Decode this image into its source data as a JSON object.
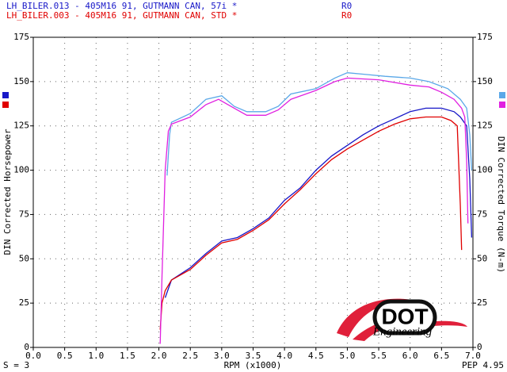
{
  "chart_data": {
    "type": "line",
    "run_labels": [
      "R0",
      "R0"
    ],
    "y_label": "DIN Corrected Horsepower",
    "y2_label": "DIN Corrected Torque (N-m)",
    "x_label": "RPM (x1000)",
    "footer_left": "S = 3",
    "footer_right": "PEP 4.95",
    "xlim": [
      0,
      7
    ],
    "ylim": [
      0,
      175
    ],
    "y2lim": [
      0,
      175
    ],
    "xticks": [
      {
        "value": 0,
        "label": "0.0"
      },
      {
        "value": 0.5,
        "label": "0.5"
      },
      {
        "value": 1,
        "label": "1.0"
      },
      {
        "value": 1.5,
        "label": "1.5"
      },
      {
        "value": 2,
        "label": "2.0"
      },
      {
        "value": 2.5,
        "label": "2.5"
      },
      {
        "value": 3,
        "label": "3.0"
      },
      {
        "value": 3.5,
        "label": "3.5"
      },
      {
        "value": 4,
        "label": "4.0"
      },
      {
        "value": 4.5,
        "label": "4.5"
      },
      {
        "value": 5,
        "label": "5.0"
      },
      {
        "value": 5.5,
        "label": "5.5"
      },
      {
        "value": 6,
        "label": "6.0"
      },
      {
        "value": 6.5,
        "label": "6.5"
      },
      {
        "value": 7,
        "label": "7.0"
      }
    ],
    "yticks": [
      0,
      25,
      50,
      75,
      100,
      125,
      150,
      175
    ],
    "y2ticks": [
      0,
      25,
      50,
      75,
      100,
      125,
      150,
      175
    ],
    "grid": true,
    "series": [
      {
        "name": "LH_BILER.013 - 405M16 91, GUTMANN CAN, 57i *",
        "color": "#1818c8",
        "x": [
          2.1,
          2.2,
          2.5,
          2.75,
          3.0,
          3.25,
          3.5,
          3.75,
          4.0,
          4.25,
          4.5,
          4.75,
          5.0,
          5.25,
          5.5,
          5.75,
          6.0,
          6.25,
          6.5,
          6.7,
          6.8,
          6.9,
          6.95,
          6.98
        ],
        "values": [
          28,
          38,
          45,
          53,
          60,
          62,
          67,
          73,
          83,
          90,
          100,
          108,
          114,
          120,
          125,
          129,
          133,
          135,
          135,
          133,
          130,
          125,
          95,
          62
        ]
      },
      {
        "name": "LH_BILER.003 - 405M16 91, GUTMANN CAN, STD *",
        "color": "#e00000",
        "x": [
          2.02,
          2.05,
          2.1,
          2.2,
          2.5,
          2.75,
          3.0,
          3.25,
          3.5,
          3.75,
          4.0,
          4.25,
          4.5,
          4.75,
          5.0,
          5.25,
          5.5,
          5.75,
          6.0,
          6.25,
          6.5,
          6.65,
          6.75,
          6.8,
          6.82
        ],
        "values": [
          10,
          25,
          32,
          38,
          44,
          52,
          59,
          61,
          66,
          72,
          81,
          89,
          98,
          106,
          112,
          117,
          122,
          126,
          129,
          130,
          130,
          128,
          125,
          80,
          55
        ]
      },
      {
        "color": "#5aa8e8",
        "axis": "y2",
        "x": [
          2.13,
          2.17,
          2.2,
          2.5,
          2.75,
          3.0,
          3.2,
          3.4,
          3.7,
          3.9,
          4.1,
          4.5,
          4.8,
          5.0,
          5.3,
          5.6,
          6.0,
          6.3,
          6.6,
          6.8,
          6.9,
          6.95,
          6.98
        ],
        "values": [
          97,
          120,
          127,
          132,
          140,
          142,
          136,
          133,
          133,
          136,
          143,
          146,
          152,
          155,
          154,
          153,
          152,
          150,
          146,
          140,
          135,
          120,
          100
        ]
      },
      {
        "color": "#e020e0",
        "axis": "y2",
        "x": [
          2.02,
          2.05,
          2.1,
          2.15,
          2.2,
          2.5,
          2.75,
          2.95,
          3.2,
          3.4,
          3.7,
          3.9,
          4.1,
          4.5,
          4.8,
          5.0,
          5.5,
          6.0,
          6.3,
          6.5,
          6.7,
          6.82,
          6.87,
          6.9,
          6.92
        ],
        "values": [
          2,
          40,
          100,
          122,
          126,
          130,
          137,
          140,
          135,
          131,
          131,
          134,
          140,
          145,
          150,
          152,
          151,
          148,
          147,
          144,
          140,
          135,
          130,
          105,
          70
        ]
      }
    ]
  },
  "logo": {
    "text": "DOT",
    "subtitle": "Engineering"
  }
}
